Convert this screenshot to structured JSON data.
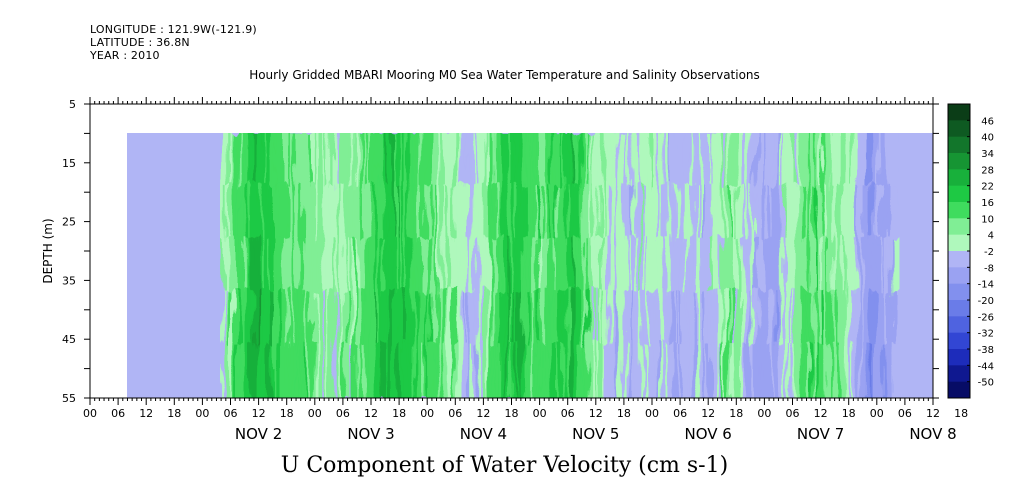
{
  "header": {
    "longitude": "LONGITUDE : 121.9W(-121.9)",
    "latitude": "LATITUDE : 36.8N",
    "year": "YEAR : 2010",
    "title": "Hourly Gridded MBARI Mooring M0 Sea Water Temperature and Salinity Observations"
  },
  "chart_data": {
    "type": "heatmap",
    "title": "Hourly Gridded MBARI Mooring M0 Sea Water Temperature and Salinity Observations",
    "xlabel": "",
    "ylabel": "DEPTH (m)",
    "caption": "U Component of Water Velocity (cm s-1)",
    "ylim": [
      5,
      55
    ],
    "y_inverted": true,
    "y_ticks": [
      5,
      15,
      25,
      35,
      45,
      55
    ],
    "data_depth_range": [
      10,
      55
    ],
    "x_start": "2010-11-01 00:00",
    "x_hours": 180,
    "data_x_range_hours": [
      28,
      172
    ],
    "hour_tick_labels": [
      "00",
      "06",
      "12",
      "18",
      "00",
      "06",
      "12",
      "18",
      "00",
      "06",
      "12",
      "18",
      "00",
      "06",
      "12",
      "18",
      "00",
      "06",
      "12",
      "18",
      "00",
      "06",
      "12",
      "18",
      "00",
      "06",
      "12",
      "18",
      "00",
      "06",
      "12",
      "18"
    ],
    "day_labels": [
      "NOV  2",
      "NOV  3",
      "NOV  4",
      "NOV  5",
      "NOV  6",
      "NOV  7",
      "NOV  8"
    ],
    "colorbar": {
      "labels": [
        "46",
        "40",
        "34",
        "28",
        "22",
        "16",
        "10",
        "4",
        "-2",
        "-8",
        "-14",
        "-20",
        "-26",
        "-32",
        "-38",
        "-44",
        "-50"
      ],
      "colors": [
        "#0b3d17",
        "#0e5a22",
        "#12762b",
        "#169533",
        "#18b03b",
        "#1ec944",
        "#3fdc5e",
        "#80ee95",
        "#aff8bc",
        "#b0b5f5",
        "#9aa2f2",
        "#8290ee",
        "#6a7ce8",
        "#4f63e0",
        "#3246d4",
        "#1d2cbb",
        "#0f1890",
        "#070c66"
      ]
    },
    "features": [
      {
        "time": "Nov 2 12:00",
        "sign": "positive",
        "value_approx": 18
      },
      {
        "time": "Nov 3 16:00",
        "sign": "positive",
        "value_approx": 16
      },
      {
        "time": "Nov 4 18:00",
        "sign": "positive",
        "value_approx": 14
      },
      {
        "time": "Nov 5 06:00",
        "sign": "positive",
        "value_approx": 12
      },
      {
        "time": "Nov 6 18:00",
        "sign": "negative",
        "value_approx": -14
      },
      {
        "time": "Nov 7 00:00",
        "sign": "negative",
        "value_approx": -20
      },
      {
        "time": "Nov 8 00:00",
        "sign": "negative",
        "value_approx": -26
      }
    ]
  }
}
